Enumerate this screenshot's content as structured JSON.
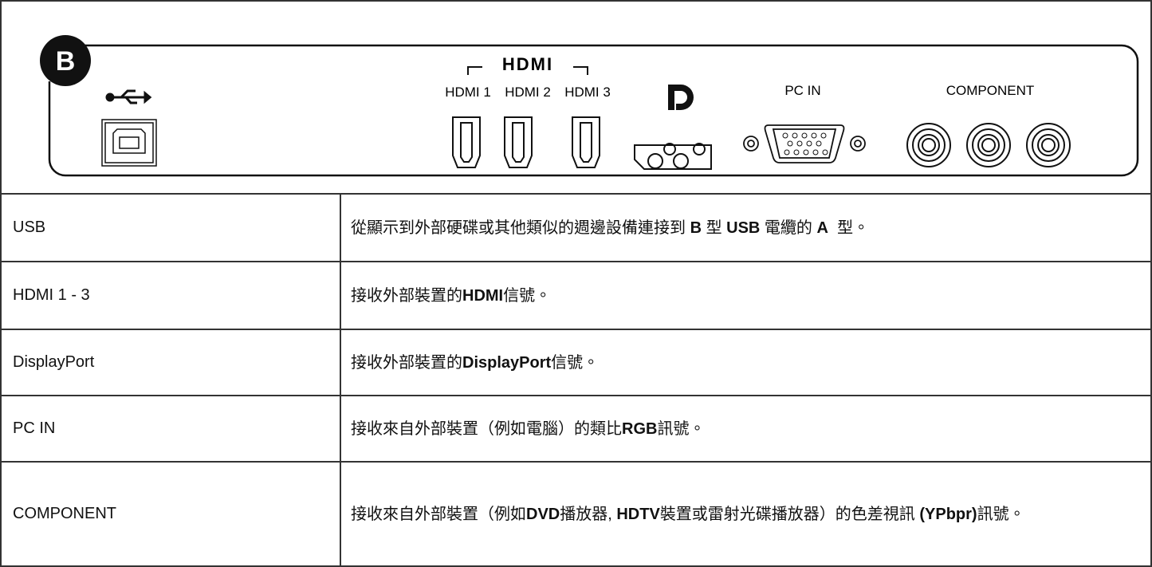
{
  "diagram": {
    "badge": "B",
    "hdmi_logo": "HDMI",
    "labels": [
      "HDMI 1",
      "HDMI 2",
      "HDMI 3",
      "PC IN",
      "COMPONENT"
    ]
  },
  "table": {
    "rows": [
      {
        "port": "USB",
        "description": [
          {
            "text": "從顯示到外部硬碟或其他類似的週邊設備連接到 ",
            "bold": false
          },
          {
            "text": "B",
            "bold": true
          },
          {
            "text": " 型 ",
            "bold": false
          },
          {
            "text": "USB",
            "bold": true
          },
          {
            "text": " 電纜的 ",
            "bold": false
          },
          {
            "text": "A",
            "bold": true
          },
          {
            "text": "  型。",
            "bold": false
          }
        ]
      },
      {
        "port": "HDMI 1 - 3",
        "description": [
          {
            "text": "接收外部裝置的",
            "bold": false
          },
          {
            "text": "HDMI",
            "bold": true
          },
          {
            "text": "信號。",
            "bold": false
          }
        ]
      },
      {
        "port": "DisplayPort",
        "description": [
          {
            "text": "接收外部裝置的",
            "bold": false
          },
          {
            "text": "DisplayPort",
            "bold": true
          },
          {
            "text": "信號。",
            "bold": false
          }
        ]
      },
      {
        "port": "PC IN",
        "description": [
          {
            "text": "接收來自外部裝置（例如電腦）的類比",
            "bold": false
          },
          {
            "text": "RGB",
            "bold": true
          },
          {
            "text": "訊號。",
            "bold": false
          }
        ]
      },
      {
        "port": "COMPONENT",
        "description": [
          {
            "text": "接收來自外部裝置（例如",
            "bold": false
          },
          {
            "text": "DVD",
            "bold": true
          },
          {
            "text": "播放器, ",
            "bold": false
          },
          {
            "text": "HDTV",
            "bold": true
          },
          {
            "text": "裝置或雷射光碟播放器）的色差視訊 ",
            "bold": false
          },
          {
            "text": "(YPbpr)",
            "bold": true
          },
          {
            "text": "訊號。",
            "bold": false
          }
        ]
      }
    ]
  }
}
